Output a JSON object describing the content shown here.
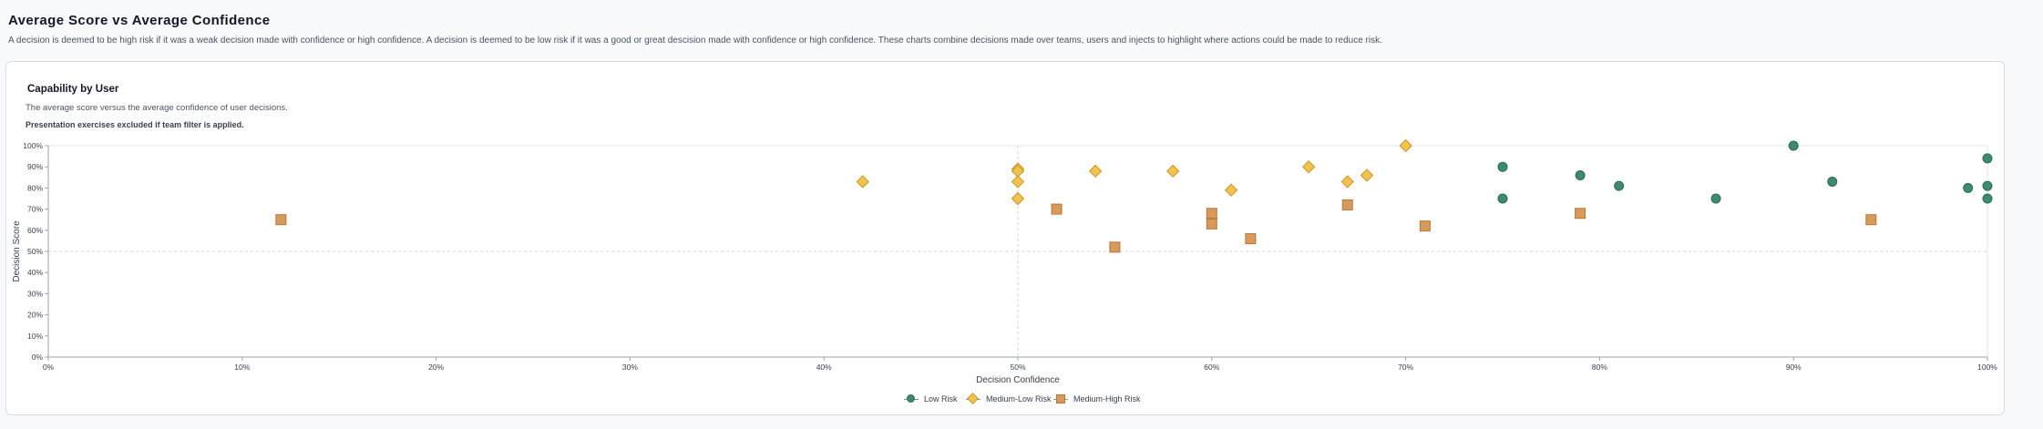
{
  "page": {
    "title": "Average Score vs Average Confidence",
    "description": "A decision is deemed to be high risk if it was a weak decision made with confidence or high confidence. A decision is deemed to be low risk if it was a good or great descision made with confidence or high confidence. These charts combine decisions made over teams, users and injects to highlight where actions could be made to reduce risk."
  },
  "card": {
    "title": "Capability by User",
    "subtitle": "The average score versus the average confidence of user decisions.",
    "note": "Presentation exercises excluded if team filter is applied."
  },
  "colors": {
    "low_risk": "#3d8a6f",
    "medium_low_risk": "#f2c24f",
    "medium_high_risk": "#d89a5a"
  },
  "chart_data": {
    "type": "scatter",
    "xlabel": "Decision Confidence",
    "ylabel": "Decision Score",
    "xlim": [
      0,
      100
    ],
    "ylim": [
      0,
      100
    ],
    "x_ticks": [
      "0%",
      "10%",
      "20%",
      "30%",
      "40%",
      "50%",
      "60%",
      "70%",
      "80%",
      "90%",
      "100%"
    ],
    "y_ticks": [
      "0%",
      "10%",
      "20%",
      "30%",
      "40%",
      "50%",
      "60%",
      "70%",
      "80%",
      "90%",
      "100%"
    ],
    "reference_lines": {
      "x": 50,
      "y": 50
    },
    "legend_position": "bottom-center",
    "series": [
      {
        "name": "Low Risk",
        "marker": "circle",
        "points": [
          [
            90,
            100
          ],
          [
            75,
            90
          ],
          [
            79,
            86
          ],
          [
            81,
            81
          ],
          [
            75,
            75
          ],
          [
            86,
            75
          ],
          [
            92,
            83
          ],
          [
            99,
            80
          ],
          [
            100,
            81
          ],
          [
            100,
            75
          ],
          [
            100,
            94
          ]
        ]
      },
      {
        "name": "Medium-Low Risk",
        "marker": "diamond",
        "points": [
          [
            42,
            83
          ],
          [
            50,
            89
          ],
          [
            50,
            88
          ],
          [
            50,
            83
          ],
          [
            50,
            75
          ],
          [
            54,
            88
          ],
          [
            58,
            88
          ],
          [
            61,
            79
          ],
          [
            65,
            90
          ],
          [
            67,
            83
          ],
          [
            68,
            86
          ],
          [
            70,
            100
          ]
        ]
      },
      {
        "name": "Medium-High Risk",
        "marker": "square",
        "points": [
          [
            12,
            65
          ],
          [
            52,
            70
          ],
          [
            55,
            52
          ],
          [
            60,
            68
          ],
          [
            60,
            63
          ],
          [
            62,
            56
          ],
          [
            67,
            72
          ],
          [
            71,
            62
          ],
          [
            79,
            68
          ],
          [
            94,
            65
          ]
        ]
      }
    ]
  }
}
